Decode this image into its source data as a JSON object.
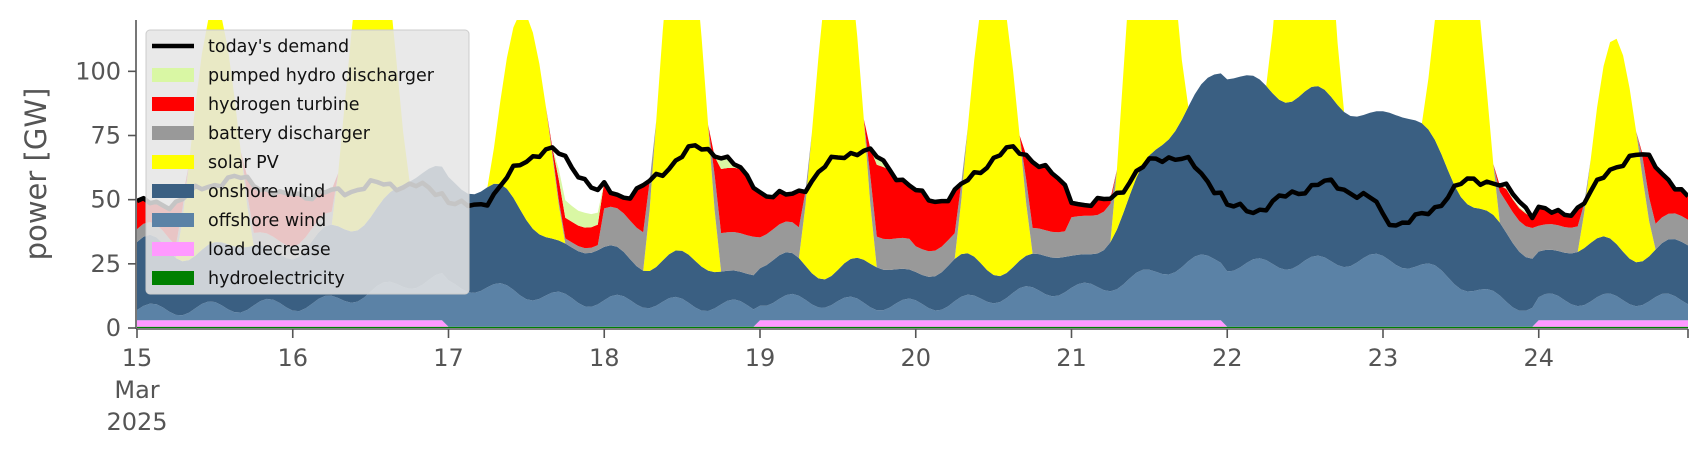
{
  "chart_data": {
    "type": "area",
    "stacked": true,
    "title": "",
    "xlabel": "",
    "ylabel": "power [GW]",
    "xlim": [
      0,
      239
    ],
    "ylim": [
      0,
      120
    ],
    "grid": false,
    "legend_position": "top-left",
    "y_ticks": [
      0,
      25,
      50,
      75,
      100
    ],
    "x_ticks": [
      {
        "x": 0,
        "lines": [
          "15",
          "Mar",
          "2025"
        ]
      },
      {
        "x": 24,
        "lines": [
          "16"
        ]
      },
      {
        "x": 48,
        "lines": [
          "17"
        ]
      },
      {
        "x": 72,
        "lines": [
          "18"
        ]
      },
      {
        "x": 96,
        "lines": [
          "19"
        ]
      },
      {
        "x": 120,
        "lines": [
          "20"
        ]
      },
      {
        "x": 144,
        "lines": [
          "21"
        ]
      },
      {
        "x": 168,
        "lines": [
          "22"
        ]
      },
      {
        "x": 192,
        "lines": [
          "23"
        ]
      },
      {
        "x": 216,
        "lines": [
          "24"
        ]
      }
    ],
    "x_units": "hours since 15 Mar 2025 00:00",
    "daily_profiles": {
      "hydro_gw": [
        0.5,
        0.5,
        0.5,
        0.5,
        0.5,
        0.5,
        0.5,
        0.5,
        0.5,
        0.5
      ],
      "load_decrease_gw": [
        2.5,
        2.5,
        0,
        0,
        2.5,
        2.5,
        2.5,
        0,
        0,
        2.5
      ],
      "offshore_wind_gw": [
        4,
        6,
        16,
        10,
        8,
        6,
        12,
        24,
        26,
        8
      ],
      "onshore_wind_gw": [
        24,
        22,
        42,
        18,
        14,
        14,
        12,
        72,
        58,
        20
      ],
      "demand_night_gw": [
        48,
        52,
        47,
        52,
        51,
        50,
        48,
        46,
        41,
        44
      ],
      "demand_peak_gw": [
        58,
        56,
        69,
        70,
        69,
        69,
        67,
        56,
        58,
        67
      ],
      "solar_peak_gw": [
        92,
        120,
        80,
        140,
        135,
        120,
        135,
        140,
        115,
        80
      ],
      "hydrogen_turbine_gw": [
        30,
        25,
        8,
        25,
        28,
        25,
        30,
        0,
        5,
        25
      ],
      "battery_discharger_gw": [
        5,
        5,
        2,
        15,
        12,
        10,
        15,
        10,
        12,
        10
      ],
      "pumped_hydro_discharger_gw": [
        0,
        0,
        2,
        4,
        3,
        3,
        0,
        8,
        0,
        0
      ]
    },
    "series": [
      {
        "name": "hydroelectricity",
        "color": "#008000"
      },
      {
        "name": "load decrease",
        "color": "#ff99ff"
      },
      {
        "name": "offshore wind",
        "color": "#5b82a6"
      },
      {
        "name": "onshore wind",
        "color": "#3a5f82"
      },
      {
        "name": "solar PV",
        "color": "#ffff00"
      },
      {
        "name": "battery discharger",
        "color": "#999999"
      },
      {
        "name": "hydrogen turbine",
        "color": "#ff0000"
      },
      {
        "name": "pumped hydro discharger",
        "color": "#d9f7a4"
      }
    ],
    "demand": {
      "name": "today's demand",
      "color": "#000000"
    },
    "legend_entries": [
      {
        "name": "today's demand",
        "color": "#000000",
        "kind": "line"
      },
      {
        "name": "pumped hydro discharger",
        "color": "#d9f7a4",
        "kind": "patch"
      },
      {
        "name": "hydrogen turbine",
        "color": "#ff0000",
        "kind": "patch"
      },
      {
        "name": "battery discharger",
        "color": "#999999",
        "kind": "patch"
      },
      {
        "name": "solar PV",
        "color": "#ffff00",
        "kind": "patch"
      },
      {
        "name": "onshore wind",
        "color": "#3a5f82",
        "kind": "patch"
      },
      {
        "name": "offshore wind",
        "color": "#5b82a6",
        "kind": "patch"
      },
      {
        "name": "load decrease",
        "color": "#ff99ff",
        "kind": "patch"
      },
      {
        "name": "hydroelectricity",
        "color": "#008000",
        "kind": "patch"
      }
    ]
  }
}
